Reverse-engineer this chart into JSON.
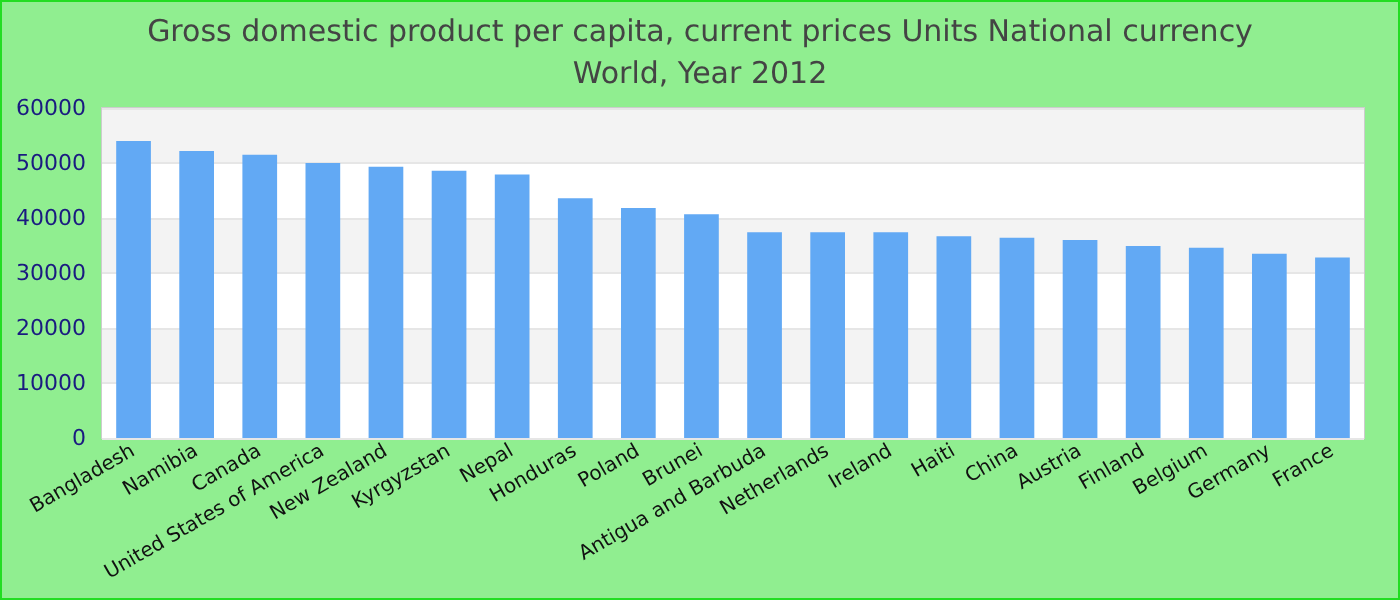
{
  "chart_data": {
    "type": "bar",
    "title": "Gross domestic product per capita, current prices Units National currency",
    "subtitle": "World, Year 2012",
    "categories": [
      "Bangladesh",
      "Namibia",
      "Canada",
      "United States of America",
      "New Zealand",
      "Kyrgyzstan",
      "Nepal",
      "Honduras",
      "Poland",
      "Brunei",
      "Antigua and Barbuda",
      "Netherlands",
      "Ireland",
      "Haiti",
      "China",
      "Austria",
      "Finland",
      "Belgium",
      "Germany",
      "France"
    ],
    "values": [
      54000,
      52200,
      51500,
      50000,
      49300,
      48600,
      47900,
      43600,
      41800,
      40700,
      37400,
      37400,
      37400,
      36700,
      36400,
      36000,
      34900,
      34600,
      33500,
      32800
    ],
    "color": "#62a9f4",
    "ylim": [
      0,
      60000
    ],
    "yticks": [
      0,
      10000,
      20000,
      30000,
      40000,
      50000,
      60000
    ],
    "grid": "y"
  }
}
